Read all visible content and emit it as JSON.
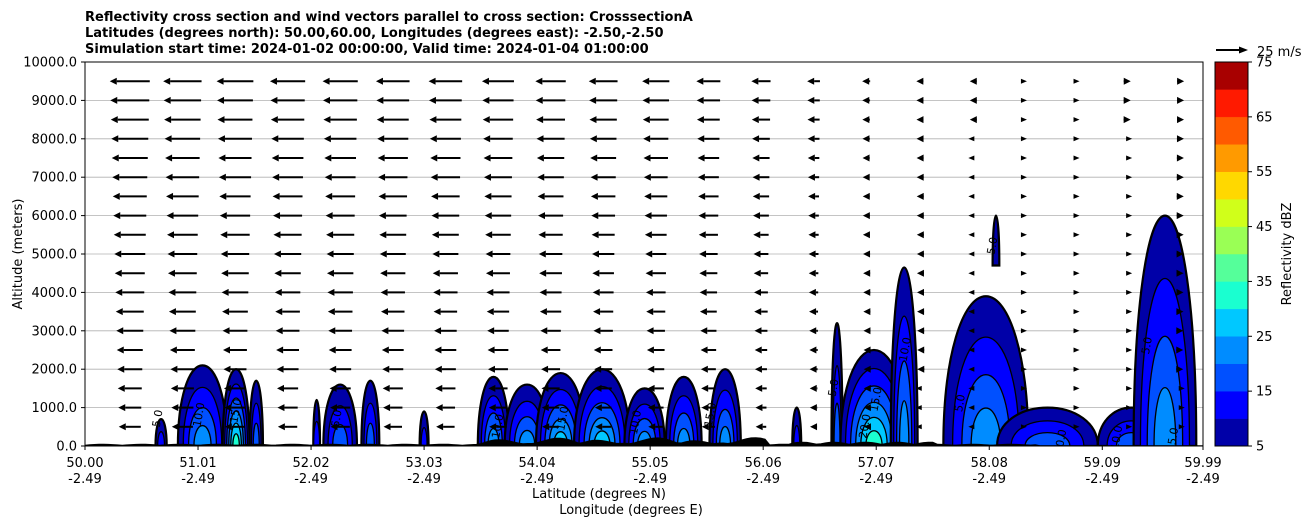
{
  "chart_data": {
    "type": "heatmap",
    "title_lines": [
      "Reflectivity cross section and wind vectors parallel to cross section: CrosssectionA",
      "Latitudes (degrees north): 50.00,60.00, Longitudes (degrees east): -2.50,-2.50",
      "Simulation start time: 2024-01-02 00:00:00, Valid time: 2024-01-04 01:00:00"
    ],
    "xlabel": "Latitude (degrees N)",
    "xlabel2": "Longitude (degrees E)",
    "ylabel": "Altitude (meters)",
    "xlim": [
      50.0,
      59.99
    ],
    "ylim": [
      0,
      10000
    ],
    "lat_ticks": [
      "50.00",
      "51.01",
      "52.02",
      "53.03",
      "54.04",
      "55.05",
      "56.06",
      "57.07",
      "58.08",
      "59.09",
      "59.99"
    ],
    "lon_ticks": [
      "-2.49",
      "-2.49",
      "-2.49",
      "-2.49",
      "-2.49",
      "-2.49",
      "-2.49",
      "-2.49",
      "-2.49",
      "-2.49",
      "-2.49"
    ],
    "lat_tick_values": [
      50.0,
      51.01,
      52.02,
      53.03,
      54.04,
      55.05,
      56.06,
      57.07,
      58.08,
      59.09,
      59.99
    ],
    "y_ticks": [
      "0.0",
      "1000.0",
      "2000.0",
      "3000.0",
      "4000.0",
      "5000.0",
      "6000.0",
      "7000.0",
      "8000.0",
      "9000.0",
      "10000.0"
    ],
    "y_tick_values": [
      0,
      1000,
      2000,
      3000,
      4000,
      5000,
      6000,
      7000,
      8000,
      9000,
      10000
    ],
    "grid": "horizontal",
    "colorbar": {
      "label": "Reflectivity dBZ",
      "levels": [
        5,
        10,
        15,
        20,
        25,
        30,
        35,
        40,
        45,
        50,
        55,
        60,
        65,
        70,
        75
      ],
      "tick_labels": [
        "5",
        "15",
        "25",
        "35",
        "45",
        "55",
        "65",
        "75"
      ],
      "tick_values": [
        5,
        15,
        25,
        35,
        45,
        55,
        65,
        75
      ],
      "colors": [
        "#0000a8",
        "#0000ff",
        "#0050ff",
        "#008cff",
        "#00c8ff",
        "#1affd0",
        "#55ff9a",
        "#9aff55",
        "#d0ff1a",
        "#ffd800",
        "#ff9a00",
        "#ff5a00",
        "#ff1a00",
        "#a80000"
      ]
    },
    "wind_key_label": "25 m/s",
    "wind_rows_m": [
      500,
      1000,
      1500,
      2000,
      2500,
      3000,
      3500,
      4000,
      4500,
      5000,
      5500,
      6000,
      6500,
      7000,
      7500,
      8000,
      8500,
      9000,
      9500
    ],
    "wind_cols_lat": [
      50.4,
      50.87,
      51.34,
      51.81,
      52.28,
      52.75,
      53.22,
      53.69,
      54.16,
      54.63,
      55.1,
      55.57,
      56.04,
      56.51,
      56.98,
      57.45,
      57.92,
      58.39,
      58.86,
      59.33,
      59.8
    ],
    "wind_top_u_ms": [
      -25,
      -24,
      -23,
      -22,
      -22,
      -21,
      -21,
      -20,
      -19,
      -18,
      -17,
      -15,
      -12,
      -8,
      -5,
      -3,
      -2,
      0,
      1,
      2,
      3
    ],
    "cells": [
      {
        "lat": 50.68,
        "w": 0.05,
        "top": 700,
        "peak": 12
      },
      {
        "lat": 51.05,
        "w": 0.22,
        "top": 2100,
        "peak": 22
      },
      {
        "lat": 51.35,
        "w": 0.12,
        "top": 2000,
        "peak": 30
      },
      {
        "lat": 51.53,
        "w": 0.06,
        "top": 1700,
        "peak": 15
      },
      {
        "lat": 52.07,
        "w": 0.03,
        "top": 1200,
        "peak": 10
      },
      {
        "lat": 52.28,
        "w": 0.15,
        "top": 1600,
        "peak": 16
      },
      {
        "lat": 52.55,
        "w": 0.08,
        "top": 1700,
        "peak": 17
      },
      {
        "lat": 53.03,
        "w": 0.04,
        "top": 900,
        "peak": 12
      },
      {
        "lat": 53.65,
        "w": 0.14,
        "top": 1800,
        "peak": 22
      },
      {
        "lat": 53.95,
        "w": 0.2,
        "top": 1600,
        "peak": 24
      },
      {
        "lat": 54.25,
        "w": 0.22,
        "top": 1900,
        "peak": 26
      },
      {
        "lat": 54.62,
        "w": 0.25,
        "top": 2000,
        "peak": 25
      },
      {
        "lat": 55.0,
        "w": 0.18,
        "top": 1500,
        "peak": 20
      },
      {
        "lat": 55.35,
        "w": 0.16,
        "top": 1800,
        "peak": 22
      },
      {
        "lat": 55.72,
        "w": 0.14,
        "top": 2000,
        "peak": 24
      },
      {
        "lat": 56.36,
        "w": 0.04,
        "top": 1000,
        "peak": 14
      },
      {
        "lat": 56.72,
        "w": 0.05,
        "top": 3200,
        "peak": 18
      },
      {
        "lat": 57.05,
        "w": 0.3,
        "top": 2500,
        "peak": 32
      },
      {
        "lat": 57.32,
        "w": 0.12,
        "top": 4650,
        "peak": 22
      },
      {
        "lat": 58.05,
        "w": 0.38,
        "top": 3900,
        "peak": 24
      },
      {
        "lat": 58.14,
        "w": 0.03,
        "top": 6000,
        "bottom": 4700,
        "peak": 8
      },
      {
        "lat": 58.6,
        "w": 0.45,
        "top": 1000,
        "peak": 18
      },
      {
        "lat": 59.35,
        "w": 0.3,
        "top": 1000,
        "peak": 16
      },
      {
        "lat": 59.65,
        "w": 0.28,
        "top": 6000,
        "peak": 22
      }
    ],
    "contour_labels": [
      "5.0",
      "10.0",
      "15.0",
      "20.0",
      "25.0",
      "30.0"
    ]
  }
}
